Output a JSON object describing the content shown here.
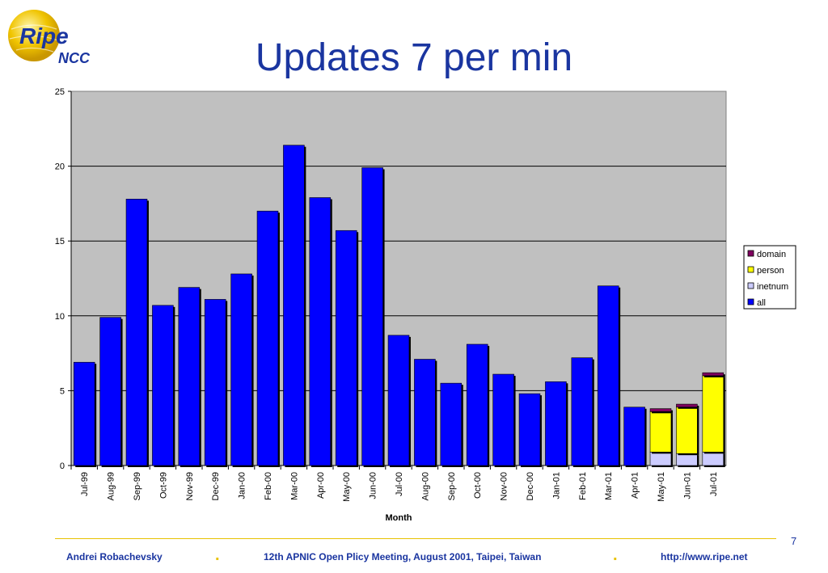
{
  "slide": {
    "title": "Updates 7 per min",
    "page_number": "7",
    "logo": {
      "word": "Ripe",
      "sub": "NCC"
    },
    "footer": {
      "author": "Andrei Robachevsky",
      "event": "12th APNIC Open Plicy Meeting, August 2001, Taipei, Taiwan",
      "url": "http://www.ripe.net"
    }
  },
  "colors": {
    "title": "#1a35a0",
    "plot_bg": "#c0c0c0",
    "all": "#0000ff",
    "inetnum": "#ccccff",
    "person": "#ffff00",
    "domain": "#800060",
    "footer_rule": "#e8c200"
  },
  "chart_data": {
    "type": "bar",
    "stacked": true,
    "xlabel": "Month",
    "ylabel": "",
    "ylim": [
      0,
      25
    ],
    "yticks": [
      0,
      5,
      10,
      15,
      20,
      25
    ],
    "grid": true,
    "legend_position": "right",
    "categories": [
      "Jul-99",
      "Aug-99",
      "Sep-99",
      "Oct-99",
      "Nov-99",
      "Dec-99",
      "Jan-00",
      "Feb-00",
      "Mar-00",
      "Apr-00",
      "May-00",
      "Jun-00",
      "Jul-00",
      "Aug-00",
      "Sep-00",
      "Oct-00",
      "Nov-00",
      "Dec-00",
      "Jan-01",
      "Feb-01",
      "Mar-01",
      "Apr-01",
      "May-01",
      "Jun-01",
      "Jul-01"
    ],
    "series": [
      {
        "name": "all",
        "values": [
          6.9,
          9.9,
          17.8,
          10.7,
          11.9,
          11.1,
          12.8,
          17.0,
          21.4,
          17.9,
          15.7,
          19.9,
          8.7,
          7.1,
          5.5,
          8.1,
          6.1,
          4.8,
          5.6,
          7.2,
          12.0,
          3.9,
          0,
          0,
          0
        ]
      },
      {
        "name": "inetnum",
        "values": [
          0,
          0,
          0,
          0,
          0,
          0,
          0,
          0,
          0,
          0,
          0,
          0,
          0,
          0,
          0,
          0,
          0,
          0,
          0,
          0,
          0,
          0,
          0.9,
          0.8,
          0.9
        ]
      },
      {
        "name": "person",
        "values": [
          0,
          0,
          0,
          0,
          0,
          0,
          0,
          0,
          0,
          0,
          0,
          0,
          0,
          0,
          0,
          0,
          0,
          0,
          0,
          0,
          0,
          0,
          2.7,
          3.1,
          5.1
        ]
      },
      {
        "name": "domain",
        "values": [
          0,
          0,
          0,
          0,
          0,
          0,
          0,
          0,
          0,
          0,
          0,
          0,
          0,
          0,
          0,
          0,
          0,
          0,
          0,
          0,
          0,
          0,
          0.2,
          0.2,
          0.2
        ]
      }
    ],
    "legend_order": [
      "domain",
      "person",
      "inetnum",
      "all"
    ]
  }
}
